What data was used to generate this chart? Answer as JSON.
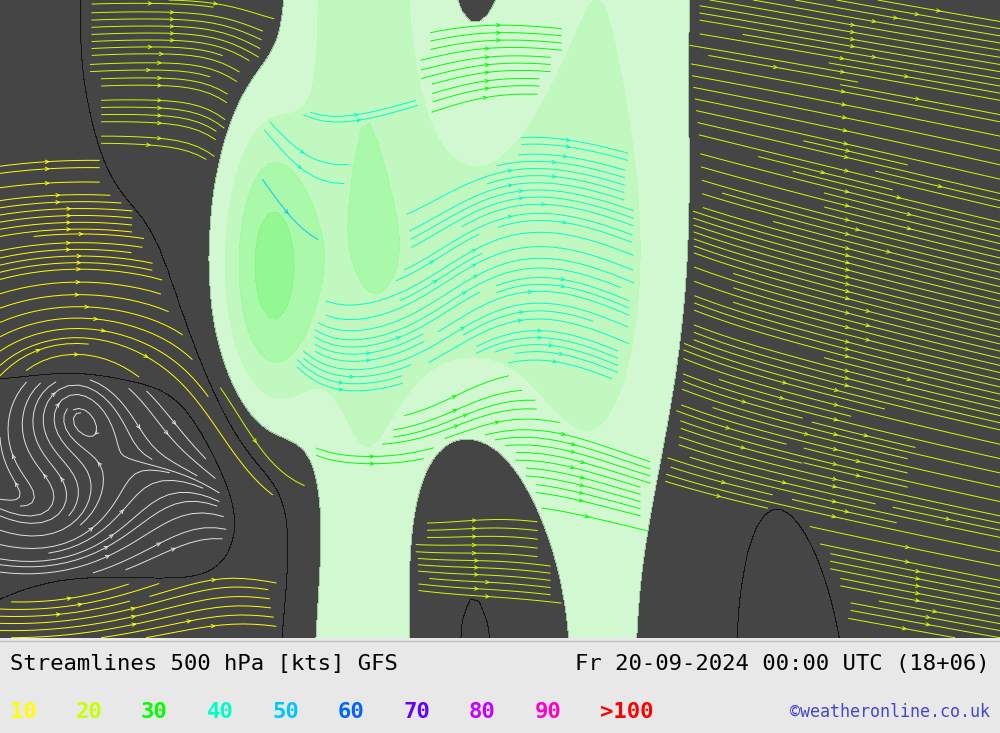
{
  "title_left": "Streamlines 500 hPa [kts] GFS",
  "title_right": "Fr 20-09-2024 00:00 UTC (18+06)",
  "watermark": "©weatheronline.co.uk",
  "legend_values": [
    "10",
    "20",
    "30",
    "40",
    "50",
    "60",
    "70",
    "80",
    "90",
    ">100"
  ],
  "legend_colors": [
    "#ffff00",
    "#c8ff00",
    "#00ff00",
    "#00ffc8",
    "#00c8ff",
    "#0064ff",
    "#6400ff",
    "#c800ff",
    "#ff00c8",
    "#ff0000"
  ],
  "bg_color": "#e8e8e8",
  "ocean_color": "#e8e8e8",
  "land_fill": "#e8e8e8",
  "coast_color": "#888888",
  "border_color": "#888888",
  "text_color": "#000000",
  "bottom_bg": "#f0f0f0",
  "legend_fontsize": 16,
  "title_fontsize": 16,
  "watermark_color": "#4444cc",
  "watermark_fontsize": 12,
  "figsize": [
    10.0,
    7.33
  ],
  "dpi": 100,
  "extent": [
    -175,
    -40,
    15,
    80
  ],
  "speed_levels": [
    0,
    10,
    20,
    30,
    40,
    50,
    60,
    70,
    80,
    90,
    110
  ],
  "fill_colors": [
    "none",
    "none",
    "none",
    "#c8ffc8",
    "#b0ffb0",
    "#90ff90",
    "#70ff70",
    "#50ff50",
    "#30ff30",
    "#10dd10"
  ],
  "streamline_colors": [
    [
      0,
      10,
      "#e0e0e0"
    ],
    [
      10,
      20,
      "#ffff00"
    ],
    [
      20,
      30,
      "#c8ff00"
    ],
    [
      30,
      40,
      "#00ff00"
    ],
    [
      40,
      50,
      "#00ffc8"
    ],
    [
      50,
      60,
      "#00c8ff"
    ],
    [
      60,
      70,
      "#0064ff"
    ],
    [
      70,
      80,
      "#6400ff"
    ],
    [
      80,
      90,
      "#c800ff"
    ],
    [
      90,
      200,
      "#ff0000"
    ]
  ]
}
